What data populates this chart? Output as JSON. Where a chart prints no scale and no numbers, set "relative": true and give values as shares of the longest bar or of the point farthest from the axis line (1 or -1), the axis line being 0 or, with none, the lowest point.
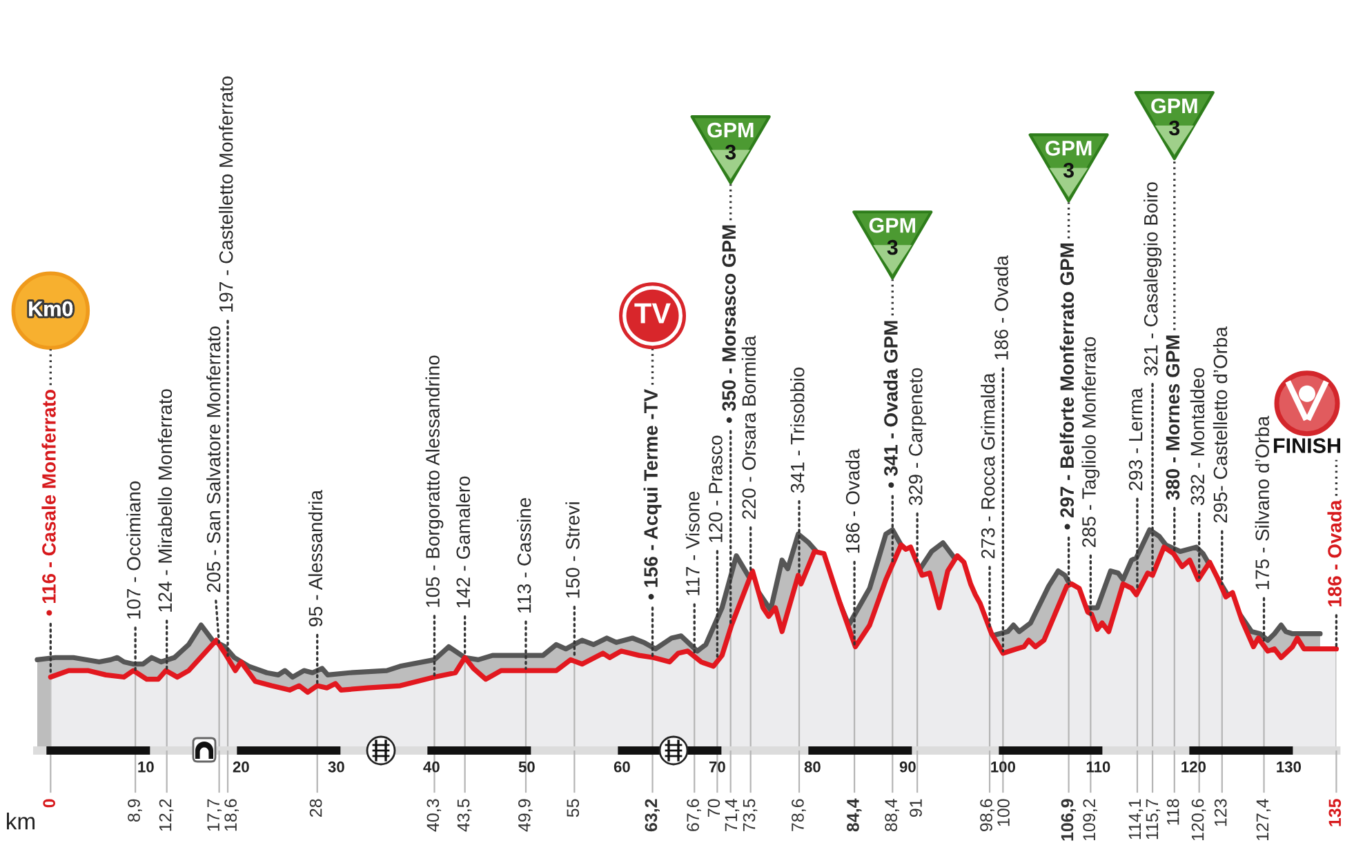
{
  "chart_data": {
    "type": "area",
    "relative": true,
    "xlabel": "km",
    "xlim": [
      -1.4,
      135
    ],
    "xticks": [
      0,
      {
        "value": 8.9,
        "label": "8,9"
      },
      {
        "value": 12.2,
        "label": "12,2"
      },
      {
        "value": 17.7,
        "label": "17,7"
      },
      {
        "value": 18.6,
        "label": "18,6"
      },
      28,
      {
        "value": 40.3,
        "label": "40,3"
      },
      {
        "value": 43.5,
        "label": "43,5"
      },
      {
        "value": 49.9,
        "label": "49,9"
      },
      55,
      {
        "value": 63.2,
        "label": "63,2"
      },
      {
        "value": 67.6,
        "label": "67,6"
      },
      70,
      {
        "value": 71.4,
        "label": "71,4"
      },
      {
        "value": 73.5,
        "label": "73,5"
      },
      {
        "value": 78.6,
        "label": "78,6"
      },
      {
        "value": 84.4,
        "label": "84,4"
      },
      {
        "value": 88.4,
        "label": "88,4"
      },
      91,
      {
        "value": 98.6,
        "label": "98,6"
      },
      100,
      {
        "value": 106.9,
        "label": "106,9"
      },
      {
        "value": 109.2,
        "label": "109,2"
      },
      {
        "value": 114.1,
        "label": "114,1"
      },
      {
        "value": 115.7,
        "label": "115,7"
      },
      118,
      {
        "value": 120.6,
        "label": "120,6"
      },
      123,
      {
        "value": 127.4,
        "label": "127,4"
      },
      135
    ],
    "x2lim": [
      -1.4,
      135
    ],
    "x2ticks": [
      10,
      20,
      30,
      40,
      50,
      60,
      70,
      80,
      90,
      100,
      110,
      120,
      130
    ],
    "grid": "x",
    "series": [
      {
        "color": "#565656",
        "x": [
          -1.4,
          0.5,
          2.4,
          5.1,
          6.3,
          7.0,
          7.7,
          8.7,
          9.7,
          10.6,
          11.6,
          13.0,
          14.5,
          15.8,
          17.0,
          18.3,
          19.3,
          20.8,
          22.7,
          23.9,
          24.6,
          25.4,
          26.6,
          27.5,
          28.5,
          29.1,
          31.4,
          35.3,
          36.7,
          40.3,
          41.8,
          43.5,
          44.9,
          46.4,
          51.7,
          53.1,
          54.1,
          55.8,
          57.0,
          58.4,
          59.4,
          61.1,
          62.3,
          63.5,
          65.2,
          66.2,
          67.9,
          68.8,
          70.5,
          72.0,
          73.9,
          75.6,
          76.8,
          77.4,
          78.5,
          79.6,
          81.2,
          82.6,
          83.8,
          86.0,
          87.7,
          88.4,
          89.3,
          90.3,
          91.3,
          92.5,
          93.7,
          94.9,
          96.1,
          98.8,
          100.5,
          101.1,
          101.7,
          102.9,
          104.8,
          105.8,
          106.5,
          108.4,
          109.9,
          111.3,
          112.1,
          112.6,
          113.5,
          114.0,
          115.4,
          116.4,
          117.1,
          118.6,
          120.3,
          121.0,
          122.2,
          124.4,
          126.1,
          127.0,
          127.8,
          128.5,
          129.2,
          129.7,
          130.4,
          133.3
        ],
        "values": [
          0.4,
          0.41,
          0.41,
          0.39,
          0.4,
          0.41,
          0.39,
          0.38,
          0.38,
          0.41,
          0.39,
          0.41,
          0.47,
          0.56,
          0.49,
          0.46,
          0.41,
          0.37,
          0.34,
          0.33,
          0.35,
          0.32,
          0.35,
          0.34,
          0.36,
          0.33,
          0.34,
          0.35,
          0.37,
          0.4,
          0.46,
          0.41,
          0.4,
          0.42,
          0.42,
          0.47,
          0.45,
          0.49,
          0.47,
          0.5,
          0.48,
          0.5,
          0.48,
          0.45,
          0.5,
          0.51,
          0.44,
          0.47,
          0.64,
          0.88,
          0.74,
          0.63,
          0.86,
          0.82,
          0.98,
          0.94,
          0.86,
          0.69,
          0.56,
          0.73,
          0.98,
          1.0,
          0.93,
          0.89,
          0.82,
          0.9,
          0.94,
          0.87,
          0.74,
          0.51,
          0.53,
          0.56,
          0.53,
          0.57,
          0.74,
          0.81,
          0.79,
          0.64,
          0.64,
          0.81,
          0.8,
          0.77,
          0.86,
          0.87,
          1.0,
          0.97,
          0.93,
          0.9,
          0.92,
          0.89,
          0.8,
          0.64,
          0.53,
          0.52,
          0.49,
          0.52,
          0.56,
          0.53,
          0.52,
          0.52
        ]
      },
      {
        "color": "#e2181f",
        "x": [
          0,
          1.9,
          3.9,
          5.8,
          7.7,
          8.7,
          10.1,
          11.3,
          12.1,
          13.3,
          14.5,
          17.4,
          18.3,
          19.4,
          20.0,
          21.5,
          23.2,
          25.1,
          26.1,
          27.0,
          28.0,
          29.0,
          29.9,
          30.5,
          33.3,
          36.7,
          40.3,
          42.5,
          43.5,
          44.4,
          45.7,
          47.3,
          53.1,
          54.6,
          55.8,
          58.0,
          58.7,
          59.9,
          61.8,
          63.3,
          65.0,
          65.9,
          66.9,
          68.3,
          69.6,
          70.5,
          71.5,
          73.7,
          74.8,
          75.4,
          76.1,
          76.8,
          78.5,
          78.8,
          80.2,
          81.2,
          82.9,
          84.5,
          86.0,
          87.7,
          89.3,
          89.8,
          90.3,
          91.5,
          92.3,
          93.3,
          94.2,
          95.2,
          95.9,
          96.6,
          97.1,
          97.6,
          98.8,
          100.0,
          101.4,
          102.2,
          102.7,
          103.4,
          104.3,
          106.7,
          107.2,
          108.0,
          108.9,
          109.3,
          109.9,
          110.4,
          111.1,
          112.6,
          113.5,
          114.0,
          115.2,
          115.7,
          116.9,
          117.9,
          118.8,
          119.6,
          120.5,
          121.7,
          122.5,
          123.4,
          124.1,
          125.1,
          126.3,
          126.8,
          127.8,
          128.5,
          129.2,
          130.4,
          130.9,
          131.6,
          135
        ],
        "values": [
          0.32,
          0.35,
          0.35,
          0.33,
          0.32,
          0.35,
          0.31,
          0.31,
          0.35,
          0.32,
          0.35,
          0.49,
          0.43,
          0.35,
          0.39,
          0.3,
          0.28,
          0.26,
          0.28,
          0.25,
          0.28,
          0.27,
          0.29,
          0.26,
          0.27,
          0.28,
          0.32,
          0.34,
          0.41,
          0.36,
          0.31,
          0.35,
          0.35,
          0.4,
          0.38,
          0.43,
          0.41,
          0.44,
          0.42,
          0.41,
          0.39,
          0.43,
          0.44,
          0.39,
          0.37,
          0.42,
          0.56,
          0.81,
          0.64,
          0.6,
          0.64,
          0.53,
          0.79,
          0.75,
          0.9,
          0.89,
          0.66,
          0.46,
          0.56,
          0.77,
          0.93,
          0.91,
          0.92,
          0.79,
          0.8,
          0.64,
          0.81,
          0.88,
          0.85,
          0.75,
          0.7,
          0.66,
          0.52,
          0.43,
          0.45,
          0.46,
          0.49,
          0.46,
          0.49,
          0.74,
          0.75,
          0.73,
          0.62,
          0.61,
          0.54,
          0.57,
          0.53,
          0.75,
          0.73,
          0.7,
          0.8,
          0.79,
          0.92,
          0.89,
          0.83,
          0.86,
          0.77,
          0.85,
          0.78,
          0.69,
          0.71,
          0.58,
          0.46,
          0.5,
          0.44,
          0.45,
          0.41,
          0.46,
          0.5,
          0.45,
          0.45
        ]
      }
    ],
    "annotations": [
      {
        "text": "• 116 - Casale Monferrato",
        "x": 0,
        "y": 0.32
      },
      {
        "text": "107 - Occimiano",
        "x": 8.9,
        "y": 0.34
      },
      {
        "text": "124 - Mirabello Monferrato",
        "x": 12.2,
        "y": 0.35
      },
      {
        "text": "205 - San Salvatore Monferrato",
        "x": 17.7,
        "y": 0.47
      },
      {
        "text": "197 - Castelletto Monferrato",
        "x": 18.6,
        "y": 0.41
      },
      {
        "text": "95 - Alessandria",
        "x": 28,
        "y": 0.28
      },
      {
        "text": "105 - Borgoratto Alessandrino",
        "x": 40.3,
        "y": 0.32
      },
      {
        "text": "142 - Gamalero",
        "x": 43.5,
        "y": 0.41
      },
      {
        "text": "113 - Cassine",
        "x": 49.9,
        "y": 0.35
      },
      {
        "text": "150 - Strevi",
        "x": 55,
        "y": 0.4
      },
      {
        "text": "• 156 - Acqui Terme -TV",
        "x": 63.2,
        "y": 0.41
      },
      {
        "text": "117 - Visone",
        "x": 67.6,
        "y": 0.42
      },
      {
        "text": "120 - Prasco",
        "x": 70,
        "y": 0.39
      },
      {
        "text": "• 350 - Morsasco GPM",
        "x": 71.4,
        "y": 0.55
      },
      {
        "text": "220 - Orsara Bormida",
        "x": 73.5,
        "y": 0.79
      },
      {
        "text": "341 - Trisobbio",
        "x": 78.6,
        "y": 0.78
      },
      {
        "text": "186 - Ovada",
        "x": 84.4,
        "y": 0.46
      },
      {
        "text": "• 341 - Ovada GPM",
        "x": 88.4,
        "y": 0.83
      },
      {
        "text": "329 - Carpeneto",
        "x": 91,
        "y": 0.84
      },
      {
        "text": "273 - Rocca Grimalda",
        "x": 98.6,
        "y": 0.53
      },
      {
        "text": "186 - Ovada",
        "x": 100,
        "y": 0.43
      },
      {
        "text": "• 297 - Belforte Monferrato GPM",
        "x": 106.9,
        "y": 0.74
      },
      {
        "text": "285 - Tagliolo Monferrato",
        "x": 109.2,
        "y": 0.59
      },
      {
        "text": "293 - Lerma",
        "x": 114.1,
        "y": 0.71
      },
      {
        "text": "321 - Casaleggio Boiro",
        "x": 115.7,
        "y": 0.79
      },
      {
        "text": "380 - Mornes GPM",
        "x": 118,
        "y": 0.88
      },
      {
        "text": "332 - Montaldeo",
        "x": 120.6,
        "y": 0.77
      },
      {
        "text": "295- Castelletto d’Orba",
        "x": 123,
        "y": 0.74
      },
      {
        "text": "175 - Silvano d’Orba",
        "x": 127.4,
        "y": 0.47
      },
      {
        "text": "186 - Ovada",
        "x": 135,
        "y": 0.45
      },
      "Km0",
      "TV",
      "GPM\n3",
      "GPM\n3",
      "GPM\n3",
      "GPM\n3",
      "FINISH"
    ]
  }
}
